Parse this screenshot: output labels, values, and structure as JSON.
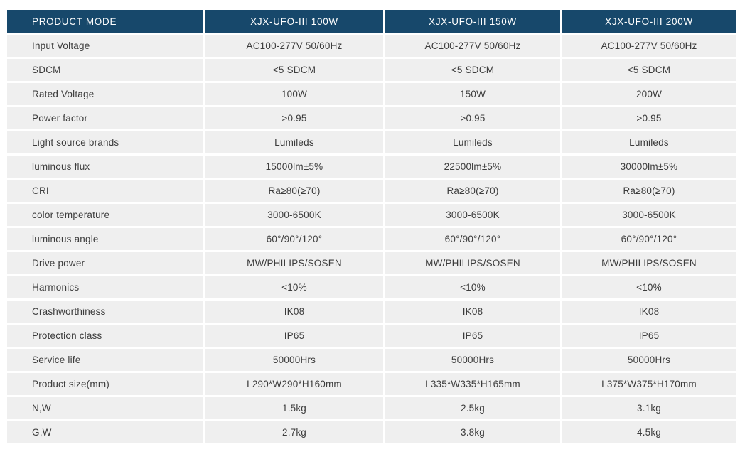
{
  "table": {
    "header": [
      "PRODUCT MODE",
      "XJX-UFO-III 100W",
      "XJX-UFO-III 150W",
      "XJX-UFO-III 200W"
    ],
    "rows": [
      {
        "label": "Input Voltage",
        "values": [
          "AC100-277V 50/60Hz",
          "AC100-277V 50/60Hz",
          "AC100-277V 50/60Hz"
        ]
      },
      {
        "label": "SDCM",
        "values": [
          "<5 SDCM",
          "<5 SDCM",
          "<5 SDCM"
        ]
      },
      {
        "label": "Rated Voltage",
        "values": [
          "100W",
          "150W",
          "200W"
        ]
      },
      {
        "label": "Power factor",
        "values": [
          ">0.95",
          ">0.95",
          ">0.95"
        ]
      },
      {
        "label": "Light source brands",
        "values": [
          "Lumileds",
          "Lumileds",
          "Lumileds"
        ]
      },
      {
        "label": "luminous flux",
        "values": [
          "15000lm±5%",
          "22500lm±5%",
          "30000lm±5%"
        ]
      },
      {
        "label": "CRI",
        "values": [
          "Ra≥80(≥70)",
          "Ra≥80(≥70)",
          "Ra≥80(≥70)"
        ]
      },
      {
        "label": "color temperature",
        "values": [
          "3000-6500K",
          "3000-6500K",
          "3000-6500K"
        ]
      },
      {
        "label": "luminous angle",
        "values": [
          "60°/90°/120°",
          "60°/90°/120°",
          "60°/90°/120°"
        ]
      },
      {
        "label": "Drive power",
        "values": [
          "MW/PHILIPS/SOSEN",
          "MW/PHILIPS/SOSEN",
          "MW/PHILIPS/SOSEN"
        ]
      },
      {
        "label": "Harmonics",
        "values": [
          "<10%",
          "<10%",
          "<10%"
        ]
      },
      {
        "label": "Crashworthiness",
        "values": [
          "IK08",
          "IK08",
          "IK08"
        ]
      },
      {
        "label": "Protection class",
        "values": [
          "IP65",
          "IP65",
          "IP65"
        ]
      },
      {
        "label": "Service life",
        "values": [
          "50000Hrs",
          "50000Hrs",
          "50000Hrs"
        ]
      },
      {
        "label": "Product size(mm)",
        "values": [
          "L290*W290*H160mm",
          "L335*W335*H165mm",
          "L375*W375*H170mm"
        ]
      },
      {
        "label": "N,W",
        "values": [
          "1.5kg",
          "2.5kg",
          "3.1kg"
        ]
      },
      {
        "label": "G,W",
        "values": [
          "2.7kg",
          "3.8kg",
          "4.5kg"
        ]
      }
    ],
    "colors": {
      "header_bg": "#17486b",
      "header_text": "#ffffff",
      "row_bg": "#efefef",
      "separator": "#ffffff",
      "text": "#3c3c3c"
    }
  }
}
